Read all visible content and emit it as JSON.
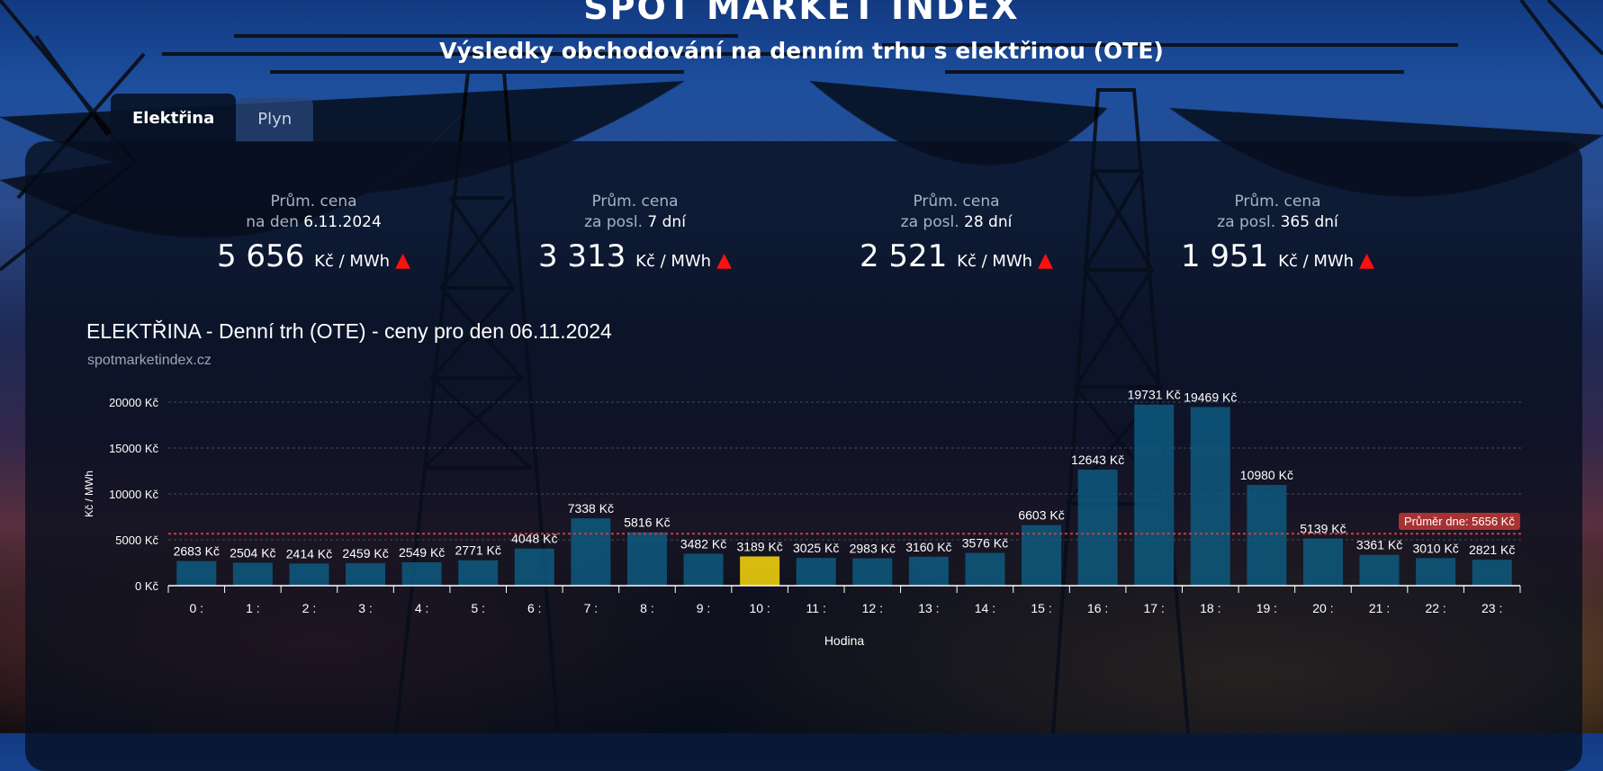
{
  "header": {
    "title": "SPOT MARKET INDEX",
    "subtitle": "Výsledky obchodování na denním trhu s elektřinou (OTE)"
  },
  "tabs": [
    {
      "label": "Elektřina",
      "active": true
    },
    {
      "label": "Plyn",
      "active": false
    }
  ],
  "stats": [
    {
      "line1": "Prům. cena",
      "prefix": "na den ",
      "period": "6.11.2024",
      "value": "5 656",
      "unit": "Kč / MWh",
      "trend": "up"
    },
    {
      "line1": "Prům. cena",
      "prefix": "za posl. ",
      "period": "7 dní",
      "value": "3 313",
      "unit": "Kč / MWh",
      "trend": "up"
    },
    {
      "line1": "Prům. cena",
      "prefix": "za posl. ",
      "period": "28 dní",
      "value": "2 521",
      "unit": "Kč / MWh",
      "trend": "up"
    },
    {
      "line1": "Prům. cena",
      "prefix": "za posl. ",
      "period": "365 dní",
      "value": "1 951",
      "unit": "Kč / MWh",
      "trend": "up"
    }
  ],
  "colors": {
    "bar": "#0e5d82",
    "bar_highlight": "#e3c40e",
    "avg_line": "#d23b3b",
    "trend_up": "#ff1010"
  },
  "chart_data": {
    "type": "bar",
    "title": "ELEKTŘINA - Denní trh (OTE) - ceny pro den 06.11.2024",
    "subtitle": "spotmarketindex.cz",
    "xlabel": "Hodina",
    "ylabel": "Kč / MWh",
    "categories": [
      "0 :",
      "1 :",
      "2 :",
      "3 :",
      "4 :",
      "5 :",
      "6 :",
      "7 :",
      "8 :",
      "9 :",
      "10 :",
      "11 :",
      "12 :",
      "13 :",
      "14 :",
      "15 :",
      "16 :",
      "17 :",
      "18 :",
      "19 :",
      "20 :",
      "21 :",
      "22 :",
      "23 :"
    ],
    "values": [
      2683,
      2504,
      2414,
      2459,
      2549,
      2771,
      4048,
      7338,
      5816,
      3482,
      3189,
      3025,
      2983,
      3160,
      3576,
      6603,
      12643,
      19731,
      19469,
      10980,
      5139,
      3361,
      3010,
      2821
    ],
    "value_suffix": " Kč",
    "highlight_index": 10,
    "yticks": [
      "0 Kč",
      "5000 Kč",
      "10000 Kč",
      "15000 Kč",
      "20000 Kč"
    ],
    "ytick_values": [
      0,
      5000,
      10000,
      15000,
      20000
    ],
    "ylim": [
      0,
      20000
    ],
    "grid": true,
    "average": {
      "value": 5656,
      "label": "Průměr dne: 5656 Kč"
    }
  }
}
